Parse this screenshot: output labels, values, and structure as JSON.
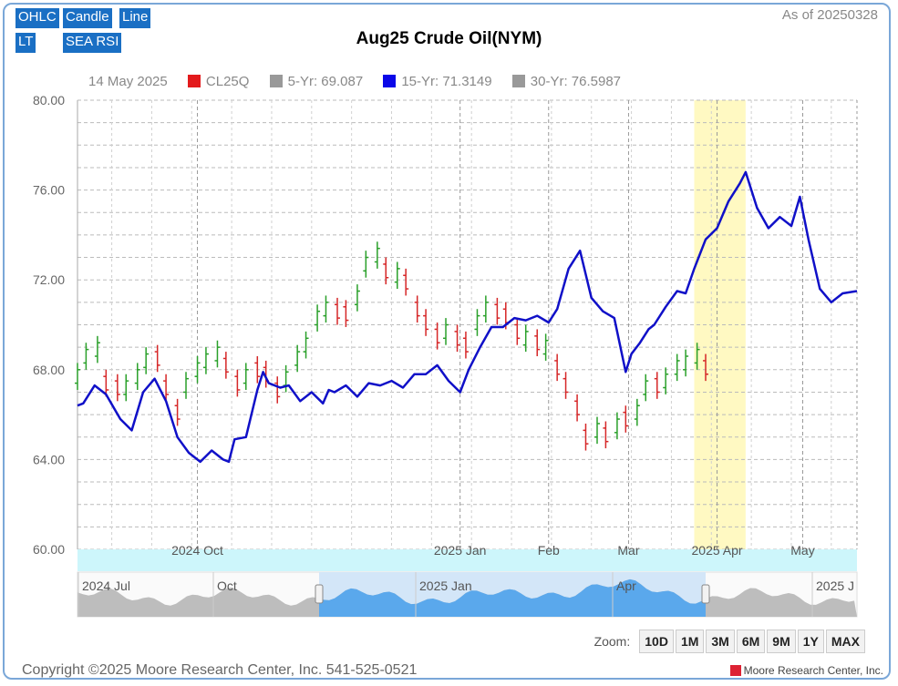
{
  "toolbar": {
    "ohlc": "OHLC",
    "candle": "Candle",
    "line": "Line",
    "lt": "LT",
    "sea_rsi": "SEA RSI"
  },
  "as_of": "As of 20250328",
  "legend": {
    "date": "14 May 2025",
    "items": [
      {
        "label": "CL25Q",
        "color": "#e31a1c"
      },
      {
        "label": "5-Yr: 69.087",
        "color": "#999999"
      },
      {
        "label": "15-Yr: 71.3149",
        "color": "#0b07e8"
      },
      {
        "label": "30-Yr: 76.5987",
        "color": "#999999"
      }
    ]
  },
  "zoom": {
    "label": "Zoom:",
    "buttons": [
      "10D",
      "1M",
      "3M",
      "6M",
      "9M",
      "1Y",
      "MAX"
    ]
  },
  "footer": {
    "copyright": "Copyright ©2025 Moore Research Center, Inc. 541-525-0521",
    "brand": "Moore Research Center, Inc."
  },
  "colors": {
    "up": "#2aa02a",
    "down": "#d62728",
    "seasonal": "#1010c8",
    "highlight": "#fff9c2",
    "navigator_fill": "#5aa8ec"
  },
  "chart_data": {
    "type": "line",
    "title": "Aug25 Crude Oil(NYM)",
    "ylim": [
      60,
      80
    ],
    "yticks": [
      "80.00",
      "76.00",
      "72.00",
      "68.00",
      "64.00",
      "60.00"
    ],
    "xlim": [
      "2024-08-20",
      "2025-05-20"
    ],
    "xticks": [
      {
        "date": "2024-10-01",
        "label": "2024 Oct"
      },
      {
        "date": "2025-01-01",
        "label": "2025 Jan"
      },
      {
        "date": "2025-02-01",
        "label": "Feb"
      },
      {
        "date": "2025-03-01",
        "label": "Mar"
      },
      {
        "date": "2025-04-01",
        "label": "2025 Apr"
      },
      {
        "date": "2025-05-01",
        "label": "May"
      }
    ],
    "highlight": [
      "2025-03-24",
      "2025-04-11"
    ],
    "seasonal_series": {
      "name": "15-Yr",
      "x": [
        "2024-08-20",
        "2024-08-22",
        "2024-08-26",
        "2024-08-30",
        "2024-09-04",
        "2024-09-08",
        "2024-09-12",
        "2024-09-16",
        "2024-09-20",
        "2024-09-24",
        "2024-09-28",
        "2024-10-02",
        "2024-10-06",
        "2024-10-08",
        "2024-10-10",
        "2024-10-12",
        "2024-10-14",
        "2024-10-18",
        "2024-10-22",
        "2024-10-24",
        "2024-10-26",
        "2024-10-30",
        "2024-11-02",
        "2024-11-06",
        "2024-11-10",
        "2024-11-14",
        "2024-11-16",
        "2024-11-18",
        "2024-11-22",
        "2024-11-26",
        "2024-11-30",
        "2024-12-04",
        "2024-12-08",
        "2024-12-12",
        "2024-12-16",
        "2024-12-20",
        "2024-12-24",
        "2024-12-28",
        "2025-01-01",
        "2025-01-04",
        "2025-01-08",
        "2025-01-12",
        "2025-01-16",
        "2025-01-20",
        "2025-01-24",
        "2025-01-28",
        "2025-02-01",
        "2025-02-04",
        "2025-02-08",
        "2025-02-12",
        "2025-02-16",
        "2025-02-20",
        "2025-02-24",
        "2025-02-28",
        "2025-03-02",
        "2025-03-05",
        "2025-03-08",
        "2025-03-10",
        "2025-03-14",
        "2025-03-18",
        "2025-03-21",
        "2025-03-24",
        "2025-03-28",
        "2025-04-01",
        "2025-04-05",
        "2025-04-09",
        "2025-04-11",
        "2025-04-15",
        "2025-04-19",
        "2025-04-23",
        "2025-04-27",
        "2025-04-30",
        "2025-05-03",
        "2025-05-07",
        "2025-05-11",
        "2025-05-15",
        "2025-05-20"
      ],
      "y": [
        66.4,
        66.5,
        67.3,
        66.9,
        65.8,
        65.3,
        67.0,
        67.6,
        66.6,
        65.0,
        64.3,
        63.9,
        64.4,
        64.2,
        64.0,
        63.9,
        64.9,
        65.0,
        67.1,
        67.9,
        67.4,
        67.2,
        67.3,
        66.6,
        67.0,
        66.5,
        67.1,
        67.0,
        67.3,
        66.8,
        67.4,
        67.3,
        67.5,
        67.2,
        67.8,
        67.8,
        68.2,
        67.5,
        67.0,
        68.0,
        69.0,
        69.9,
        69.9,
        70.3,
        70.2,
        70.4,
        70.1,
        70.7,
        72.5,
        73.3,
        71.2,
        70.6,
        70.3,
        67.9,
        68.7,
        69.2,
        69.8,
        70.0,
        70.8,
        71.5,
        71.4,
        72.5,
        73.8,
        74.3,
        75.5,
        76.3,
        76.8,
        75.2,
        74.3,
        74.8,
        74.4,
        75.7,
        73.8,
        71.6,
        71.0,
        71.4,
        71.5
      ]
    },
    "ohlc_series": {
      "name": "CL25Q",
      "x": [
        "2024-08-20",
        "2024-08-23",
        "2024-08-27",
        "2024-08-30",
        "2024-09-03",
        "2024-09-06",
        "2024-09-10",
        "2024-09-13",
        "2024-09-17",
        "2024-09-20",
        "2024-09-24",
        "2024-09-27",
        "2024-10-01",
        "2024-10-04",
        "2024-10-08",
        "2024-10-11",
        "2024-10-15",
        "2024-10-18",
        "2024-10-22",
        "2024-10-25",
        "2024-10-29",
        "2024-11-01",
        "2024-11-05",
        "2024-11-08",
        "2024-11-12",
        "2024-11-15",
        "2024-11-19",
        "2024-11-22",
        "2024-11-26",
        "2024-11-29",
        "2024-12-03",
        "2024-12-06",
        "2024-12-10",
        "2024-12-13",
        "2024-12-17",
        "2024-12-20",
        "2024-12-24",
        "2024-12-27",
        "2024-12-31",
        "2025-01-03",
        "2025-01-07",
        "2025-01-10",
        "2025-01-14",
        "2025-01-17",
        "2025-01-21",
        "2025-01-24",
        "2025-01-28",
        "2025-01-31",
        "2025-02-04",
        "2025-02-07",
        "2025-02-11",
        "2025-02-14",
        "2025-02-18",
        "2025-02-21",
        "2025-02-25",
        "2025-02-28",
        "2025-03-04",
        "2025-03-07",
        "2025-03-11",
        "2025-03-14",
        "2025-03-18",
        "2025-03-21",
        "2025-03-25",
        "2025-03-28"
      ],
      "close": [
        68.0,
        68.9,
        69.2,
        67.1,
        66.9,
        67.5,
        68.0,
        68.7,
        68.2,
        66.9,
        65.8,
        67.6,
        68.3,
        68.7,
        69.0,
        67.9,
        67.1,
        68.0,
        67.7,
        67.5,
        66.8,
        67.9,
        68.8,
        69.4,
        70.6,
        71.0,
        70.3,
        70.2,
        71.5,
        73.0,
        73.4,
        72.1,
        72.5,
        71.6,
        70.4,
        69.8,
        69.2,
        70.0,
        69.1,
        68.8,
        70.4,
        71.0,
        70.3,
        70.1,
        69.4,
        69.7,
        68.9,
        69.3,
        67.8,
        67.0,
        66.0,
        64.7,
        65.6,
        64.8,
        65.8,
        65.5,
        66.4,
        67.5,
        67.0,
        67.8,
        68.4,
        68.6,
        68.9,
        67.8
      ],
      "up": [
        true,
        true,
        true,
        false,
        false,
        true,
        true,
        true,
        false,
        false,
        false,
        true,
        true,
        true,
        true,
        false,
        false,
        true,
        false,
        false,
        false,
        true,
        true,
        true,
        true,
        true,
        false,
        false,
        true,
        true,
        true,
        false,
        true,
        false,
        false,
        false,
        false,
        true,
        false,
        false,
        true,
        true,
        false,
        false,
        false,
        true,
        false,
        true,
        false,
        false,
        false,
        false,
        true,
        false,
        true,
        false,
        true,
        true,
        false,
        true,
        true,
        true,
        true,
        false
      ]
    },
    "navigator": {
      "labels": [
        "2024 Jul",
        "Oct",
        "2025 Jan",
        "Apr",
        "2025 J"
      ]
    }
  }
}
